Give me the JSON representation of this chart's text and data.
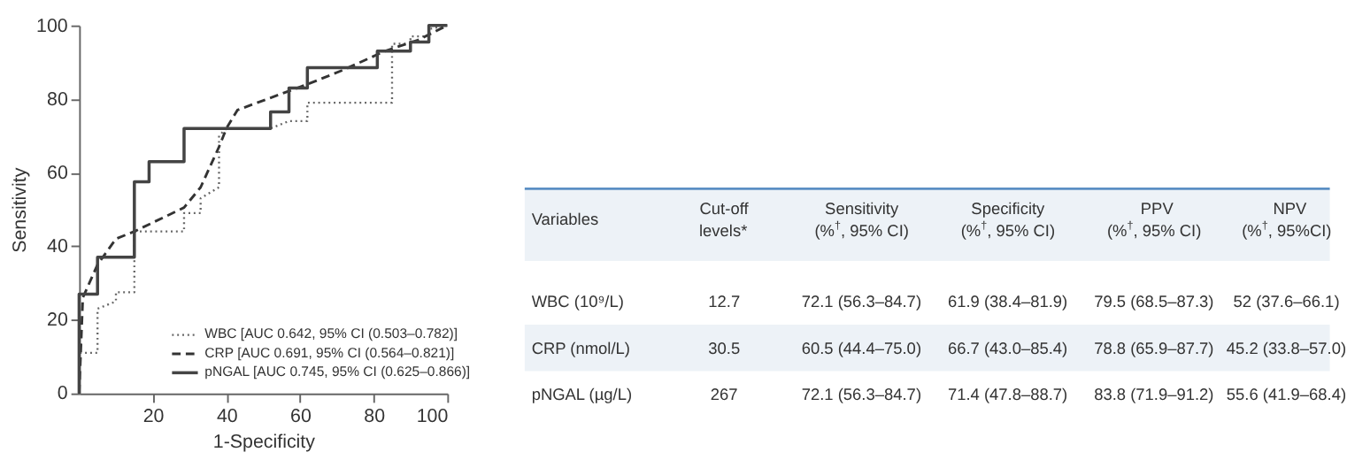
{
  "chart_data": [
    {
      "type": "line",
      "xlabel": "1-Specificity",
      "ylabel": "Sensitivity",
      "xlim": [
        0,
        100
      ],
      "ylim": [
        0,
        100
      ],
      "xticks": [
        20,
        40,
        60,
        80,
        100
      ],
      "yticks": [
        0,
        20,
        40,
        60,
        80,
        100
      ],
      "grid": false,
      "legend": "bottom right",
      "series": [
        {
          "name": "WBC [AUC 0.642, 95% CI (0.503–0.782)]",
          "color": "#666666",
          "line_style": "dotted",
          "x": [
            0,
            0,
            1,
            1,
            5,
            5,
            10,
            10,
            15,
            15,
            28.5,
            28.5,
            33,
            33,
            38,
            38,
            40,
            52,
            57,
            62,
            62,
            85,
            85,
            90,
            90,
            95,
            95,
            100
          ],
          "values": [
            0,
            11,
            11,
            11,
            11,
            23,
            25,
            27.5,
            27.5,
            44,
            44,
            49,
            49,
            53,
            56,
            70,
            72,
            72,
            74,
            74,
            79,
            79,
            95,
            95,
            97,
            97,
            99,
            100
          ]
        },
        {
          "name": "CRP [AUC 0.691, 95% CI (0.564–0.821)]",
          "color": "#333333",
          "line_style": "dashed",
          "x": [
            0,
            1,
            5,
            10,
            15,
            28.5,
            33,
            38,
            40,
            43,
            62,
            72,
            83,
            92,
            100
          ],
          "values": [
            0,
            26,
            35,
            42,
            44,
            50.5,
            56,
            67,
            72,
            77,
            84,
            88,
            93,
            96,
            100
          ]
        },
        {
          "name": "pNGAL [AUC 0.745, 95% CI (0.625–0.866)]",
          "color": "#444444",
          "line_style": "solid",
          "x": [
            0,
            0,
            5,
            5,
            15,
            15,
            19,
            19,
            28.5,
            28.5,
            52,
            52,
            57,
            57,
            62,
            62,
            81,
            81,
            90,
            90,
            95,
            95,
            100
          ],
          "values": [
            0,
            27,
            27,
            37,
            37,
            57.5,
            57.5,
            63,
            63,
            72,
            72,
            76.5,
            76.5,
            83,
            83,
            88.5,
            88.5,
            93,
            93,
            95.5,
            95.5,
            100,
            100
          ]
        }
      ]
    },
    {
      "type": "other",
      "annotations": [
        "Variables",
        "Cut-off\nlevels*",
        "Sensitivity\n(%$^{†}$, 95% CI)",
        "Specificity\n(%$^{†}$, 95% CI)",
        "PPV\n(%$^{†}$, 95% CI)",
        "NPV\n(%$^{†}$, 95%CI)",
        "WBC (10⁹/L)",
        "12.7",
        "72.1 (56.3–84.7)",
        "61.9 (38.4–81.9)",
        "79.5 (68.5–87.3)",
        "52 (37.6–66.1)",
        "CRP (nmol/L)",
        "30.5",
        "60.5 (44.4–75.0)",
        "66.7 (43.0–85.4)",
        "78.8 (65.9–87.7)",
        "45.2 (33.8–57.0)",
        "pNGAL (µg/L)",
        "267",
        "72.1 (56.3–84.7)",
        "71.4 (47.8–88.7)",
        "83.8 (71.9–91.2)",
        "55.6 (41.9–68.4)"
      ]
    }
  ]
}
